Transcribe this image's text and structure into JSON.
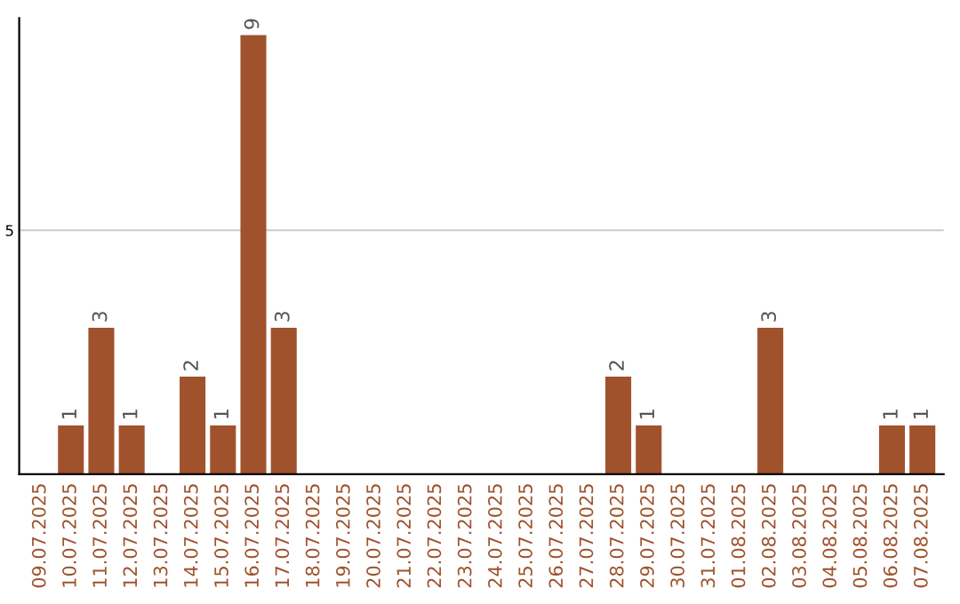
{
  "chart_data": {
    "type": "bar",
    "categories": [
      "09.07.2025",
      "10.07.2025",
      "11.07.2025",
      "12.07.2025",
      "13.07.2025",
      "14.07.2025",
      "15.07.2025",
      "16.07.2025",
      "17.07.2025",
      "18.07.2025",
      "19.07.2025",
      "20.07.2025",
      "21.07.2025",
      "22.07.2025",
      "23.07.2025",
      "24.07.2025",
      "25.07.2025",
      "26.07.2025",
      "27.07.2025",
      "28.07.2025",
      "29.07.2025",
      "30.07.2025",
      "31.07.2025",
      "01.08.2025",
      "02.08.2025",
      "03.08.2025",
      "04.08.2025",
      "05.08.2025",
      "06.08.2025",
      "07.08.2025"
    ],
    "values": [
      0,
      1,
      3,
      1,
      0,
      2,
      1,
      9,
      3,
      0,
      0,
      0,
      0,
      0,
      0,
      0,
      0,
      0,
      0,
      2,
      1,
      0,
      0,
      0,
      3,
      0,
      0,
      0,
      1,
      1
    ],
    "value_labels": [
      null,
      "1",
      "3",
      "1",
      null,
      "2",
      "1",
      "9",
      "3",
      null,
      null,
      null,
      null,
      null,
      null,
      null,
      null,
      null,
      null,
      "2",
      "1",
      null,
      null,
      null,
      "3",
      null,
      null,
      null,
      "1",
      "1"
    ],
    "color": "#a0522d",
    "ylim": [
      0,
      9.35
    ],
    "yticks": [
      5
    ],
    "grid": "y"
  }
}
